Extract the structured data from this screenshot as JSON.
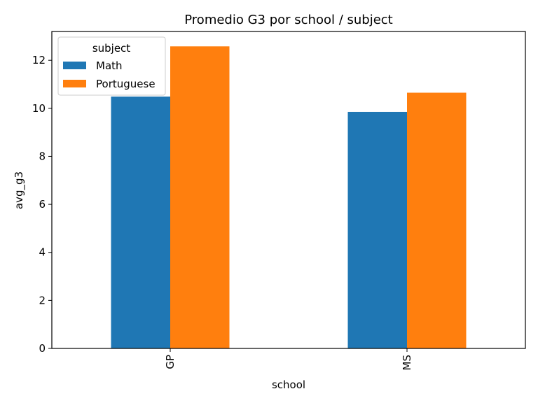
{
  "chart_data": {
    "type": "bar",
    "title": "Promedio G3 por school / subject",
    "xlabel": "school",
    "ylabel": "avg_g3",
    "categories": [
      "GP",
      "MS"
    ],
    "series": [
      {
        "name": "Math",
        "values": [
          10.49,
          9.85
        ]
      },
      {
        "name": "Portuguese",
        "values": [
          12.58,
          10.65
        ]
      }
    ],
    "ylim": [
      0,
      13.2
    ],
    "yticks": [
      0,
      2,
      4,
      6,
      8,
      10,
      12
    ],
    "grid": false,
    "legend": {
      "title": "subject",
      "placement": "top-left"
    },
    "colors": {
      "Math": "#1f77b4",
      "Portuguese": "#ff7f0e"
    }
  }
}
